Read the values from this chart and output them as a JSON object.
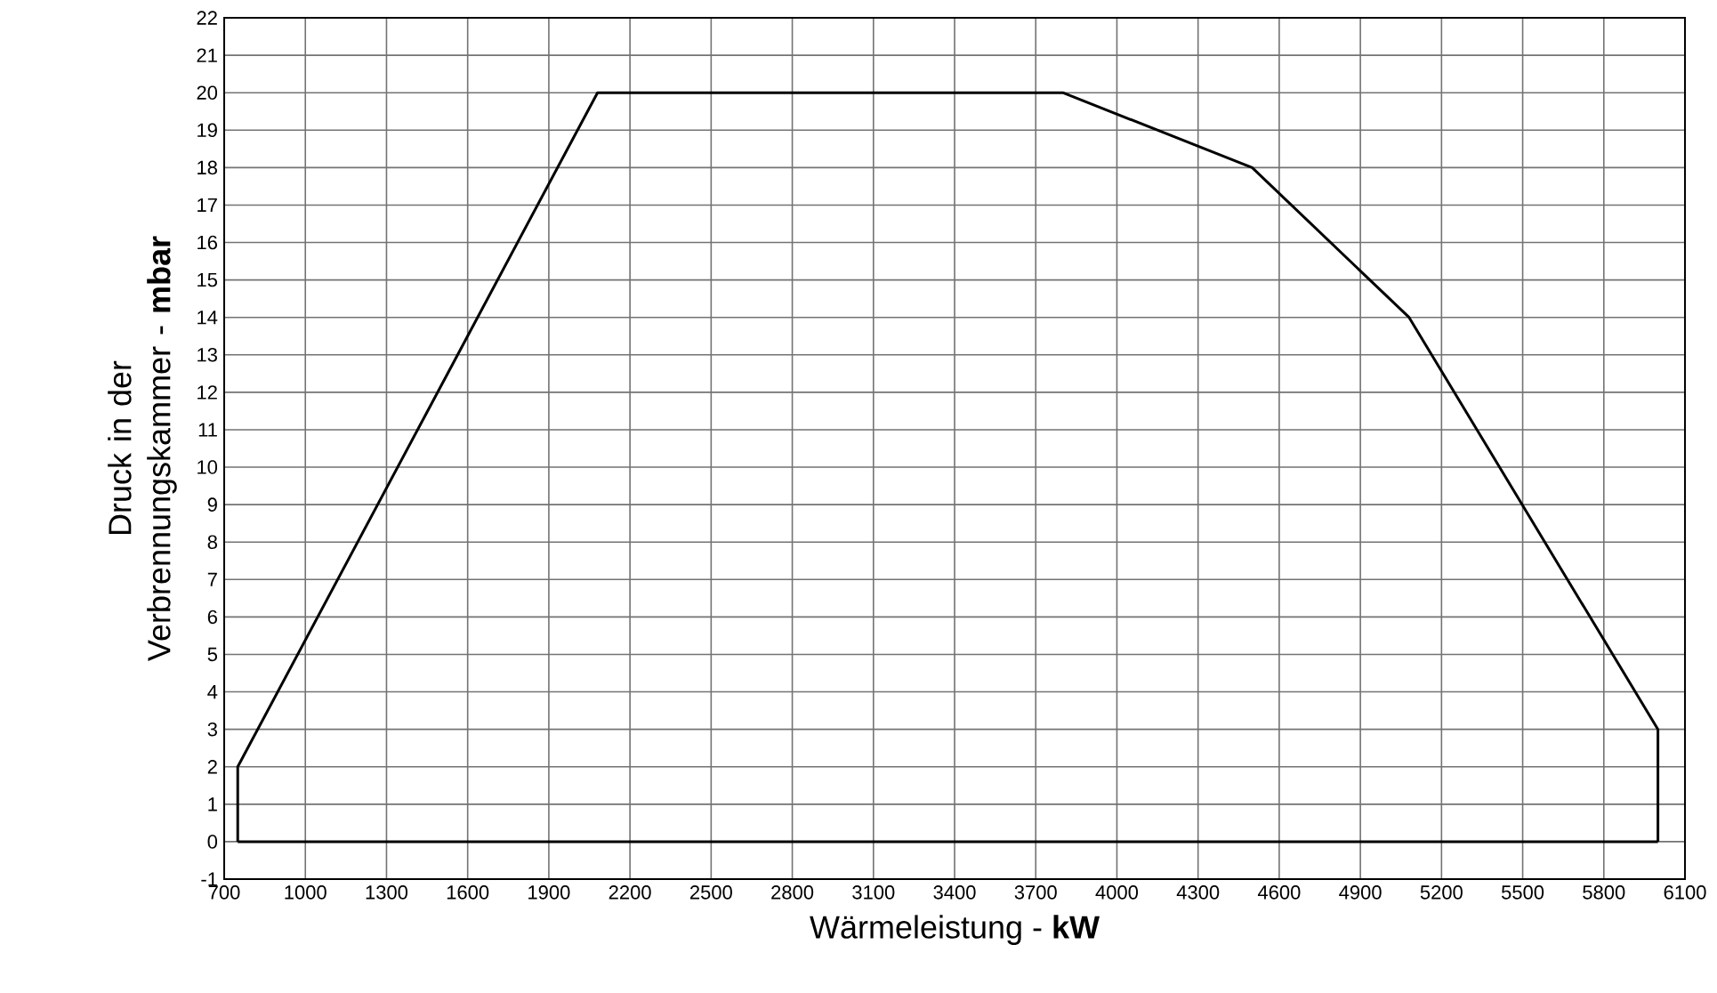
{
  "chart_data": {
    "type": "line",
    "xlabel": "Wärmeleistung - **kW**",
    "ylabel": "Druck in der Verbrennungskammer - **mbar**",
    "series": [
      {
        "x": [
          750,
          750,
          2080,
          3800,
          4500,
          5080,
          6000,
          6000
        ],
        "values": [
          0,
          2,
          20,
          20,
          18,
          14,
          3,
          0
        ],
        "color": "#000000"
      },
      {
        "x": [
          750,
          6000
        ],
        "values": [
          0,
          0
        ],
        "color": "#000000"
      }
    ],
    "xlim": [
      700,
      6100
    ],
    "xticks": [
      700,
      1000,
      1300,
      1600,
      1900,
      2200,
      2500,
      2800,
      3100,
      3400,
      3700,
      4000,
      4300,
      4600,
      4900,
      5200,
      5500,
      5800,
      6100
    ],
    "ylim": [
      -1,
      22
    ],
    "yticks": [
      -1,
      0,
      1,
      2,
      3,
      4,
      5,
      6,
      7,
      8,
      9,
      10,
      11,
      12,
      13,
      14,
      15,
      16,
      17,
      18,
      19,
      20,
      21,
      22
    ],
    "grid": true,
    "marker": "none",
    "line_style": "solid"
  }
}
